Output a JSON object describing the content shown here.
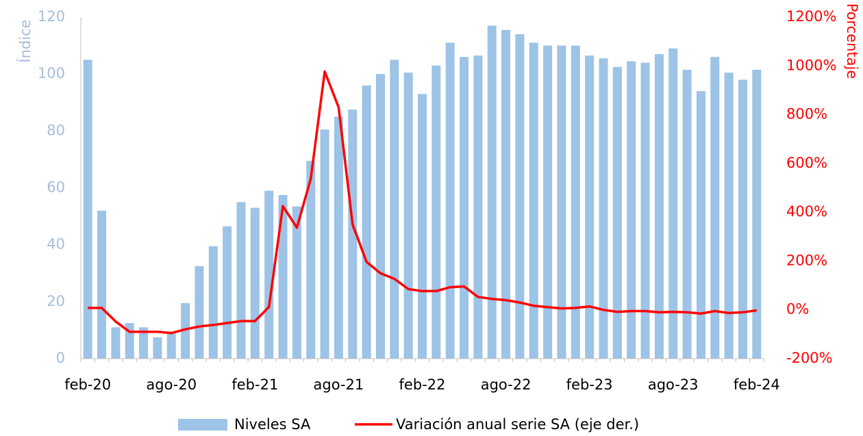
{
  "chart_data": {
    "type": "bar_line",
    "categories": [
      "feb-20",
      null,
      null,
      null,
      null,
      null,
      "ago-20",
      null,
      null,
      null,
      null,
      null,
      "feb-21",
      null,
      null,
      null,
      null,
      null,
      "ago-21",
      null,
      null,
      null,
      null,
      null,
      "feb-22",
      null,
      null,
      null,
      null,
      null,
      "ago-22",
      null,
      null,
      null,
      null,
      null,
      "feb-23",
      null,
      null,
      null,
      null,
      null,
      "ago-23",
      null,
      null,
      null,
      null,
      null,
      "feb-24"
    ],
    "series": [
      {
        "name": "Niveles SA",
        "type": "bar",
        "color": "#9dc3e6",
        "values": [
          105,
          52,
          11,
          12.5,
          11,
          7.5,
          9,
          19.5,
          32.5,
          39.5,
          46.5,
          55,
          53,
          59,
          57.5,
          53.5,
          69.5,
          80.5,
          85,
          87.5,
          96,
          100,
          105,
          100.5,
          93,
          103,
          111,
          106,
          106.5,
          117,
          115.5,
          114,
          111,
          110,
          110,
          110,
          106.5,
          105.5,
          102.5,
          104.5,
          104,
          107,
          109,
          101.5,
          94,
          106,
          100.5,
          98,
          101.5
        ]
      },
      {
        "name": "Variación anual serie SA (eje der.)",
        "type": "line",
        "axis": "y2",
        "color": "#ff0000",
        "values": [
          8,
          8,
          -48,
          -90,
          -90,
          -90,
          -95,
          -80,
          -68,
          -62,
          -54,
          -46,
          -46,
          12,
          425,
          337,
          537,
          977,
          830,
          350,
          197,
          150,
          127,
          85,
          77,
          77,
          93,
          96,
          53,
          45,
          40,
          30,
          17,
          11,
          6,
          8,
          14,
          0,
          -8,
          -5,
          -5,
          -10,
          -8,
          -10,
          -15,
          -5,
          -13,
          -10,
          -2
        ]
      }
    ],
    "y_label": "Índice",
    "y2_label": "Porcentaje",
    "ylim": [
      0,
      120
    ],
    "yticks": [
      0,
      20,
      40,
      60,
      80,
      100,
      120
    ],
    "y2lim": [
      -200,
      1200
    ],
    "y2ticks": [
      {
        "value": -200,
        "label": "-200%"
      },
      {
        "value": 0,
        "label": "0%"
      },
      {
        "value": 200,
        "label": "200%"
      },
      {
        "value": 400,
        "label": "400%"
      },
      {
        "value": 600,
        "label": "600%"
      },
      {
        "value": 800,
        "label": "800%"
      },
      {
        "value": 1000,
        "label": "1000%"
      },
      {
        "value": 1200,
        "label": "1200%"
      }
    ],
    "legend": "bottom"
  }
}
